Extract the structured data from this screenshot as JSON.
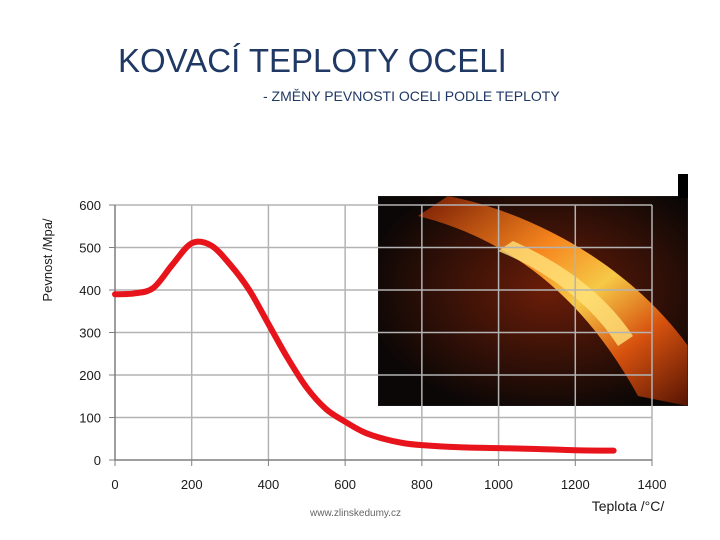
{
  "title": "KOVACÍ TEPLOTY OCELI",
  "subtitle": "- ZMĚNY PEVNOSTI OCELI PODLE TEPLOTY",
  "watermark": "www.zlinskedumy.cz",
  "photo": {
    "alt": "glowing-hot-steel-bar"
  },
  "colors": {
    "title": "#1f3864",
    "curve": "#e8141c",
    "grid": "#b3b3b3",
    "axis": "#7f7f7f"
  },
  "chart_data": {
    "type": "line",
    "title": "",
    "xlabel": "Teplota /°C/",
    "ylabel": "Pevnost /Mpa/",
    "xlim": [
      0,
      1400
    ],
    "ylim": [
      0,
      600
    ],
    "x_ticks": [
      0,
      200,
      400,
      600,
      800,
      1000,
      1200,
      1400
    ],
    "x_tick_labels": [
      "0",
      "200",
      "400",
      "600",
      "800",
      "1000",
      "1200",
      "1400"
    ],
    "y_ticks": [
      0,
      100,
      200,
      300,
      400,
      500,
      600
    ],
    "y_tick_labels": [
      "0",
      "100",
      "200",
      "300",
      "400",
      "500",
      "600"
    ],
    "grid": true,
    "series": [
      {
        "name": "Pevnost",
        "x": [
          0,
          50,
          100,
          150,
          200,
          250,
          300,
          350,
          400,
          450,
          500,
          550,
          600,
          650,
          700,
          750,
          800,
          900,
          1000,
          1100,
          1200,
          1300
        ],
        "y": [
          390,
          392,
          405,
          460,
          510,
          505,
          460,
          400,
          320,
          240,
          170,
          120,
          90,
          65,
          50,
          40,
          35,
          30,
          28,
          26,
          23,
          22
        ]
      }
    ]
  }
}
